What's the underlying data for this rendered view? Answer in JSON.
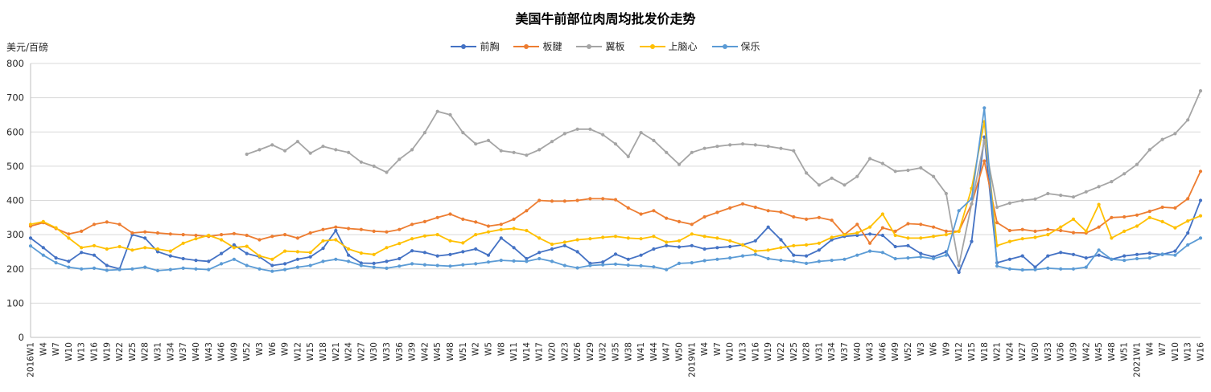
{
  "title": "美国牛前部位肉周均批发价走势",
  "y_axis_unit": "美元/百磅",
  "chart_data": {
    "type": "line",
    "title": "美国牛前部位肉周均批发价走势",
    "xlabel": "",
    "ylabel": "美元/百磅",
    "ylim": [
      0,
      800
    ],
    "ytick_step": 100,
    "grid": true,
    "legend_position": "top-center",
    "x_label_rotation": 90,
    "axis_color": "#bfbfbf",
    "gridline_color": "#d9d9d9",
    "text_color": "#262626",
    "categories": [
      "2016W1",
      "W4",
      "W7",
      "W10",
      "W13",
      "W16",
      "W19",
      "W22",
      "W25",
      "W28",
      "W31",
      "W34",
      "W37",
      "W40",
      "W43",
      "W46",
      "W49",
      "W52",
      "W3",
      "W6",
      "W9",
      "W12",
      "W15",
      "W18",
      "W21",
      "W24",
      "W27",
      "W30",
      "W33",
      "W36",
      "W39",
      "W42",
      "W45",
      "W48",
      "W51",
      "W2",
      "W5",
      "W8",
      "W11",
      "W14",
      "W17",
      "W20",
      "W23",
      "W26",
      "W29",
      "W32",
      "W35",
      "W38",
      "W41",
      "W44",
      "W47",
      "W50",
      "2019W1",
      "W4",
      "W7",
      "W10",
      "W13",
      "W16",
      "W19",
      "W22",
      "W25",
      "W28",
      "W31",
      "W34",
      "W37",
      "W40",
      "W43",
      "W46",
      "W49",
      "W52",
      "W3",
      "W6",
      "W9",
      "W12",
      "W15",
      "W18",
      "W21",
      "W24",
      "W27",
      "W30",
      "W33",
      "W36",
      "W39",
      "W42",
      "W45",
      "W48",
      "W51",
      "2021W1",
      "W4",
      "W7",
      "W10",
      "W13",
      "W16"
    ],
    "series": [
      {
        "name": "前胸",
        "color": "#4472C4",
        "values": [
          290,
          262,
          232,
          222,
          248,
          240,
          210,
          200,
          300,
          290,
          250,
          238,
          230,
          225,
          222,
          245,
          270,
          245,
          235,
          210,
          215,
          228,
          235,
          260,
          312,
          240,
          217,
          216,
          222,
          230,
          253,
          248,
          238,
          242,
          250,
          258,
          240,
          290,
          262,
          230,
          248,
          258,
          268,
          250,
          216,
          220,
          243,
          228,
          240,
          258,
          268,
          264,
          268,
          258,
          262,
          265,
          270,
          282,
          322,
          285,
          240,
          238,
          255,
          285,
          295,
          298,
          302,
          298,
          265,
          268,
          245,
          235,
          250,
          190,
          280,
          585,
          218,
          228,
          238,
          205,
          238,
          248,
          242,
          232,
          240,
          228,
          238,
          242,
          246,
          242,
          252,
          305,
          400
        ]
      },
      {
        "name": "板腱",
        "color": "#ED7D31",
        "values": [
          325,
          335,
          318,
          302,
          310,
          330,
          337,
          330,
          305,
          308,
          305,
          302,
          300,
          298,
          295,
          300,
          303,
          298,
          285,
          295,
          300,
          290,
          305,
          315,
          322,
          318,
          315,
          310,
          308,
          315,
          330,
          338,
          350,
          360,
          345,
          337,
          325,
          330,
          345,
          370,
          400,
          398,
          398,
          400,
          405,
          405,
          402,
          378,
          360,
          370,
          348,
          338,
          330,
          352,
          365,
          378,
          390,
          380,
          370,
          366,
          352,
          345,
          350,
          342,
          300,
          330,
          275,
          320,
          310,
          332,
          330,
          322,
          310,
          310,
          390,
          515,
          335,
          312,
          315,
          310,
          315,
          312,
          306,
          305,
          322,
          350,
          352,
          357,
          368,
          380,
          378,
          405,
          485
        ]
      },
      {
        "name": "翼板",
        "color": "#A5A5A5",
        "values": [
          null,
          null,
          null,
          null,
          null,
          null,
          null,
          null,
          null,
          null,
          null,
          null,
          null,
          null,
          null,
          null,
          null,
          535,
          548,
          562,
          545,
          572,
          538,
          558,
          548,
          540,
          512,
          500,
          482,
          520,
          548,
          598,
          660,
          650,
          598,
          565,
          575,
          545,
          540,
          532,
          548,
          572,
          595,
          608,
          608,
          592,
          565,
          528,
          598,
          575,
          540,
          505,
          540,
          552,
          558,
          562,
          565,
          562,
          558,
          552,
          545,
          480,
          445,
          465,
          445,
          470,
          522,
          508,
          485,
          488,
          495,
          470,
          420,
          210,
          390,
          575,
          380,
          392,
          400,
          404,
          420,
          415,
          410,
          425,
          440,
          455,
          478,
          505,
          548,
          578,
          595,
          635,
          720
        ]
      },
      {
        "name": "上脑心",
        "color": "#FFC000",
        "values": [
          330,
          338,
          320,
          290,
          262,
          268,
          258,
          265,
          255,
          262,
          258,
          252,
          275,
          288,
          298,
          285,
          262,
          266,
          238,
          228,
          252,
          250,
          248,
          282,
          285,
          258,
          246,
          242,
          262,
          274,
          288,
          296,
          300,
          282,
          276,
          300,
          308,
          315,
          318,
          312,
          290,
          272,
          278,
          285,
          288,
          292,
          295,
          290,
          288,
          295,
          278,
          282,
          302,
          295,
          290,
          282,
          270,
          252,
          255,
          262,
          268,
          270,
          275,
          292,
          300,
          305,
          322,
          360,
          298,
          290,
          290,
          295,
          300,
          310,
          435,
          630,
          268,
          280,
          288,
          292,
          300,
          322,
          345,
          310,
          388,
          290,
          310,
          325,
          350,
          338,
          320,
          340,
          355
        ]
      },
      {
        "name": "保乐",
        "color": "#5B9BD5",
        "values": [
          267,
          240,
          218,
          205,
          200,
          202,
          196,
          198,
          200,
          205,
          195,
          198,
          202,
          200,
          198,
          215,
          228,
          210,
          200,
          193,
          198,
          205,
          210,
          222,
          228,
          222,
          210,
          205,
          202,
          208,
          215,
          212,
          210,
          208,
          212,
          215,
          220,
          225,
          223,
          222,
          230,
          222,
          210,
          203,
          210,
          212,
          214,
          211,
          209,
          206,
          198,
          216,
          218,
          224,
          228,
          232,
          238,
          242,
          230,
          225,
          222,
          216,
          222,
          225,
          228,
          240,
          252,
          248,
          230,
          232,
          235,
          230,
          240,
          370,
          405,
          670,
          208,
          200,
          197,
          198,
          202,
          200,
          200,
          205,
          255,
          228,
          225,
          230,
          232,
          243,
          240,
          270,
          290
        ]
      }
    ]
  }
}
